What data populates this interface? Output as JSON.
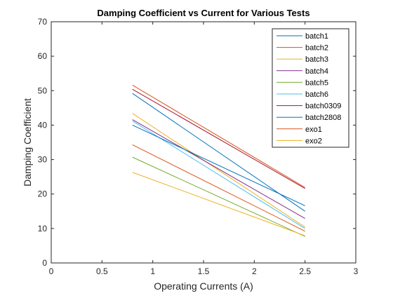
{
  "chart_data": {
    "type": "line",
    "title": "Damping Coefficient vs Current for Various Tests",
    "xlabel": "Operating Currents (A)",
    "ylabel": "Damping Coefficient",
    "xlim": [
      0,
      3
    ],
    "ylim": [
      0,
      70
    ],
    "xticks": [
      0,
      0.5,
      1,
      1.5,
      2,
      2.5,
      3
    ],
    "xtick_labels": [
      "0",
      "0.5",
      "1",
      "1.5",
      "2",
      "2.5",
      "3"
    ],
    "yticks": [
      0,
      10,
      20,
      30,
      40,
      50,
      60,
      70
    ],
    "ytick_labels": [
      "0",
      "10",
      "20",
      "30",
      "40",
      "50",
      "60",
      "70"
    ],
    "grid": false,
    "legend_position": "top-right",
    "x": [
      0.8,
      2.5
    ],
    "series": [
      {
        "name": "batch1",
        "color": "#0072BD",
        "values": [
          49.2,
          15.0
        ]
      },
      {
        "name": "batch2",
        "color": "#D95319",
        "values": [
          34.3,
          9.2
        ]
      },
      {
        "name": "batch3",
        "color": "#EDB120",
        "values": [
          43.4,
          10.4
        ]
      },
      {
        "name": "batch4",
        "color": "#7E2F8E",
        "values": [
          41.6,
          12.9
        ]
      },
      {
        "name": "batch5",
        "color": "#77AC30",
        "values": [
          30.7,
          7.7
        ]
      },
      {
        "name": "batch6",
        "color": "#4DBEEE",
        "values": [
          41.2,
          10.0
        ]
      },
      {
        "name": "batch0309",
        "color": "#A2142F",
        "values": [
          50.4,
          21.6
        ]
      },
      {
        "name": "batch2808",
        "color": "#0072BD",
        "values": [
          40.0,
          16.6
        ]
      },
      {
        "name": "exo1",
        "color": "#D95319",
        "values": [
          51.6,
          21.9
        ]
      },
      {
        "name": "exo2",
        "color": "#EDB120",
        "values": [
          26.3,
          7.9
        ]
      }
    ]
  }
}
